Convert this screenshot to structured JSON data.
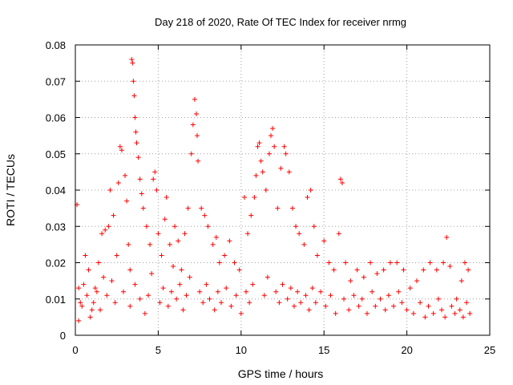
{
  "chart_data": {
    "type": "scatter",
    "title": "Day 218 of 2020, Rate Of TEC Index for receiver nrmg",
    "xlabel": "GPS time / hours",
    "ylabel": "ROTI / TECUs",
    "xlim": [
      0,
      25
    ],
    "ylim": [
      0,
      0.08
    ],
    "xticks": [
      0,
      5,
      10,
      15,
      20,
      25
    ],
    "xtick_labels": [
      "0",
      "5",
      "10",
      "15",
      "20",
      "25"
    ],
    "yticks": [
      0,
      0.01,
      0.02,
      0.03,
      0.04,
      0.05,
      0.06,
      0.07,
      0.08
    ],
    "ytick_labels": [
      "0",
      "0.01",
      "0.02",
      "0.03",
      "0.04",
      "0.05",
      "0.06",
      "0.07",
      "0.08"
    ],
    "grid": true,
    "marker": "+",
    "color": "#ff0000",
    "series": [
      {
        "name": "ROTI",
        "points": [
          [
            0.1,
            0.036
          ],
          [
            0.2,
            0.004
          ],
          [
            0.3,
            0.009
          ],
          [
            0.5,
            0.014
          ],
          [
            0.6,
            0.022
          ],
          [
            0.8,
            0.018
          ],
          [
            1.0,
            0.007
          ],
          [
            1.2,
            0.013
          ],
          [
            1.4,
            0.02
          ],
          [
            1.6,
            0.028
          ],
          [
            1.8,
            0.029
          ],
          [
            2.0,
            0.03
          ],
          [
            2.1,
            0.04
          ],
          [
            2.3,
            0.033
          ],
          [
            2.5,
            0.022
          ],
          [
            2.6,
            0.042
          ],
          [
            2.7,
            0.052
          ],
          [
            2.8,
            0.051
          ],
          [
            3.0,
            0.044
          ],
          [
            3.1,
            0.037
          ],
          [
            3.2,
            0.025
          ],
          [
            3.3,
            0.018
          ],
          [
            3.4,
            0.076
          ],
          [
            3.45,
            0.075
          ],
          [
            3.5,
            0.07
          ],
          [
            3.55,
            0.066
          ],
          [
            3.6,
            0.06
          ],
          [
            3.65,
            0.056
          ],
          [
            3.7,
            0.053
          ],
          [
            3.8,
            0.049
          ],
          [
            3.9,
            0.043
          ],
          [
            4.0,
            0.039
          ],
          [
            4.1,
            0.035
          ],
          [
            4.3,
            0.03
          ],
          [
            4.5,
            0.025
          ],
          [
            4.7,
            0.043
          ],
          [
            4.8,
            0.045
          ],
          [
            4.9,
            0.04
          ],
          [
            5.0,
            0.028
          ],
          [
            5.2,
            0.022
          ],
          [
            5.4,
            0.032
          ],
          [
            5.5,
            0.038
          ],
          [
            5.7,
            0.025
          ],
          [
            5.9,
            0.019
          ],
          [
            6.0,
            0.03
          ],
          [
            6.2,
            0.026
          ],
          [
            6.4,
            0.018
          ],
          [
            6.6,
            0.028
          ],
          [
            6.8,
            0.035
          ],
          [
            7.0,
            0.05
          ],
          [
            7.1,
            0.058
          ],
          [
            7.2,
            0.065
          ],
          [
            7.3,
            0.061
          ],
          [
            7.35,
            0.055
          ],
          [
            7.4,
            0.048
          ],
          [
            7.6,
            0.035
          ],
          [
            7.8,
            0.033
          ],
          [
            8.0,
            0.03
          ],
          [
            8.3,
            0.025
          ],
          [
            8.5,
            0.027
          ],
          [
            8.7,
            0.02
          ],
          [
            9.0,
            0.022
          ],
          [
            9.3,
            0.026
          ],
          [
            9.6,
            0.02
          ],
          [
            9.9,
            0.018
          ],
          [
            10.2,
            0.038
          ],
          [
            10.4,
            0.028
          ],
          [
            10.6,
            0.033
          ],
          [
            10.8,
            0.038
          ],
          [
            10.9,
            0.044
          ],
          [
            11.0,
            0.052
          ],
          [
            11.1,
            0.053
          ],
          [
            11.2,
            0.048
          ],
          [
            11.3,
            0.045
          ],
          [
            11.5,
            0.04
          ],
          [
            11.7,
            0.05
          ],
          [
            11.8,
            0.055
          ],
          [
            11.9,
            0.057
          ],
          [
            12.0,
            0.052
          ],
          [
            12.2,
            0.035
          ],
          [
            12.4,
            0.046
          ],
          [
            12.6,
            0.052
          ],
          [
            12.7,
            0.05
          ],
          [
            12.9,
            0.045
          ],
          [
            13.1,
            0.035
          ],
          [
            13.3,
            0.03
          ],
          [
            13.5,
            0.028
          ],
          [
            13.8,
            0.025
          ],
          [
            14.0,
            0.038
          ],
          [
            14.2,
            0.04
          ],
          [
            14.4,
            0.03
          ],
          [
            14.6,
            0.022
          ],
          [
            15.0,
            0.026
          ],
          [
            15.3,
            0.02
          ],
          [
            15.6,
            0.018
          ],
          [
            15.9,
            0.028
          ],
          [
            16.0,
            0.043
          ],
          [
            16.1,
            0.042
          ],
          [
            16.3,
            0.02
          ],
          [
            16.6,
            0.015
          ],
          [
            17.0,
            0.018
          ],
          [
            17.4,
            0.016
          ],
          [
            17.8,
            0.02
          ],
          [
            18.2,
            0.017
          ],
          [
            18.6,
            0.018
          ],
          [
            19.0,
            0.02
          ],
          [
            19.4,
            0.02
          ],
          [
            19.8,
            0.018
          ],
          [
            20.2,
            0.013
          ],
          [
            20.6,
            0.015
          ],
          [
            21.0,
            0.018
          ],
          [
            21.4,
            0.02
          ],
          [
            21.8,
            0.018
          ],
          [
            22.2,
            0.02
          ],
          [
            22.4,
            0.027
          ],
          [
            22.6,
            0.019
          ],
          [
            23.0,
            0.01
          ],
          [
            23.3,
            0.015
          ],
          [
            23.5,
            0.02
          ],
          [
            23.7,
            0.018
          ],
          [
            0.2,
            0.013
          ],
          [
            0.4,
            0.008
          ],
          [
            0.7,
            0.011
          ],
          [
            0.9,
            0.005
          ],
          [
            1.1,
            0.009
          ],
          [
            1.3,
            0.012
          ],
          [
            1.5,
            0.007
          ],
          [
            1.7,
            0.016
          ],
          [
            1.9,
            0.011
          ],
          [
            2.2,
            0.015
          ],
          [
            2.4,
            0.009
          ],
          [
            2.9,
            0.012
          ],
          [
            3.3,
            0.008
          ],
          [
            3.6,
            0.014
          ],
          [
            3.9,
            0.01
          ],
          [
            4.2,
            0.006
          ],
          [
            4.4,
            0.011
          ],
          [
            4.6,
            0.017
          ],
          [
            5.1,
            0.009
          ],
          [
            5.3,
            0.013
          ],
          [
            5.6,
            0.008
          ],
          [
            5.8,
            0.012
          ],
          [
            6.1,
            0.01
          ],
          [
            6.3,
            0.014
          ],
          [
            6.5,
            0.007
          ],
          [
            6.7,
            0.011
          ],
          [
            6.9,
            0.016
          ],
          [
            7.5,
            0.012
          ],
          [
            7.7,
            0.009
          ],
          [
            7.9,
            0.014
          ],
          [
            8.1,
            0.01
          ],
          [
            8.4,
            0.007
          ],
          [
            8.6,
            0.012
          ],
          [
            8.8,
            0.009
          ],
          [
            9.1,
            0.013
          ],
          [
            9.4,
            0.008
          ],
          [
            9.7,
            0.011
          ],
          [
            10.0,
            0.006
          ],
          [
            10.3,
            0.012
          ],
          [
            10.5,
            0.009
          ],
          [
            10.7,
            0.014
          ],
          [
            11.4,
            0.011
          ],
          [
            11.6,
            0.016
          ],
          [
            12.1,
            0.012
          ],
          [
            12.3,
            0.009
          ],
          [
            12.5,
            0.014
          ],
          [
            12.8,
            0.01
          ],
          [
            13.0,
            0.013
          ],
          [
            13.2,
            0.008
          ],
          [
            13.4,
            0.012
          ],
          [
            13.6,
            0.009
          ],
          [
            13.9,
            0.011
          ],
          [
            14.1,
            0.007
          ],
          [
            14.3,
            0.013
          ],
          [
            14.5,
            0.009
          ],
          [
            14.8,
            0.012
          ],
          [
            15.1,
            0.008
          ],
          [
            15.4,
            0.011
          ],
          [
            15.7,
            0.006
          ],
          [
            16.2,
            0.01
          ],
          [
            16.5,
            0.007
          ],
          [
            16.8,
            0.011
          ],
          [
            17.1,
            0.008
          ],
          [
            17.3,
            0.01
          ],
          [
            17.6,
            0.006
          ],
          [
            17.9,
            0.012
          ],
          [
            18.1,
            0.008
          ],
          [
            18.4,
            0.01
          ],
          [
            18.7,
            0.007
          ],
          [
            18.9,
            0.011
          ],
          [
            19.2,
            0.008
          ],
          [
            19.5,
            0.012
          ],
          [
            19.7,
            0.009
          ],
          [
            20.0,
            0.007
          ],
          [
            20.4,
            0.006
          ],
          [
            20.8,
            0.009
          ],
          [
            21.1,
            0.005
          ],
          [
            21.3,
            0.008
          ],
          [
            21.6,
            0.006
          ],
          [
            21.9,
            0.01
          ],
          [
            22.1,
            0.007
          ],
          [
            22.3,
            0.005
          ],
          [
            22.7,
            0.008
          ],
          [
            22.9,
            0.006
          ],
          [
            23.2,
            0.007
          ],
          [
            23.4,
            0.005
          ],
          [
            23.6,
            0.009
          ],
          [
            23.8,
            0.006
          ]
        ]
      }
    ]
  }
}
